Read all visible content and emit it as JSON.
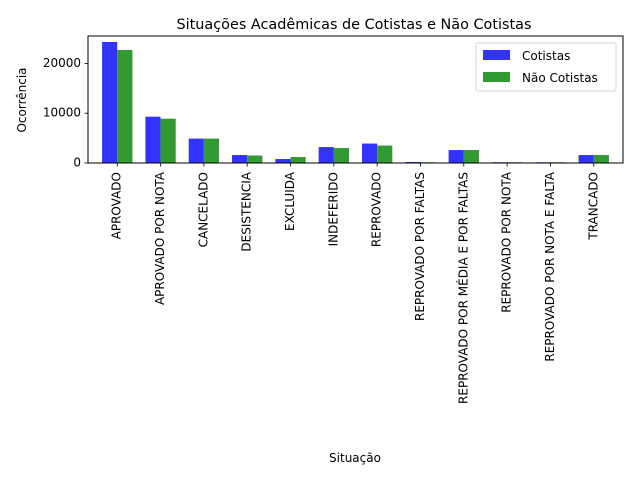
{
  "chart_data": {
    "type": "bar",
    "title": "Situações Acadêmicas de Cotistas e Não Cotistas",
    "xlabel": "Situação",
    "ylabel": "Ocorrência",
    "ylim": [
      0,
      25500
    ],
    "yticks": [
      0,
      10000,
      20000
    ],
    "grid": false,
    "legend_position": "top-right",
    "categories": [
      "APROVADO",
      "APROVADO POR NOTA",
      "CANCELADO",
      "DESISTENCIA",
      "EXCLUIDA",
      "INDEFERIDO",
      "REPROVADO",
      "REPROVADO POR FALTAS",
      "REPROVADO POR MÉDIA E POR FALTAS",
      "REPROVADO POR NOTA",
      "REPROVADO POR NOTA E FALTA",
      "TRANCADO"
    ],
    "series": [
      {
        "name": "Cotistas",
        "color": "#3333ff",
        "values": [
          24300,
          9300,
          4900,
          1600,
          800,
          3200,
          3900,
          200,
          2600,
          150,
          150,
          1600
        ]
      },
      {
        "name": "Não Cotistas",
        "color": "#339933",
        "values": [
          22700,
          8900,
          4900,
          1500,
          1200,
          3000,
          3500,
          150,
          2600,
          150,
          150,
          1600
        ]
      }
    ]
  }
}
